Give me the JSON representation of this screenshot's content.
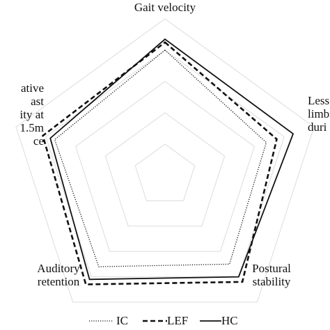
{
  "chart_data": {
    "type": "radar",
    "title": "",
    "axes": [
      {
        "label_lines": [
          "Gait velocity"
        ]
      },
      {
        "label_lines": [
          "Less",
          "limb",
          "duri"
        ]
      },
      {
        "label_lines": [
          "Postural",
          "stability"
        ]
      },
      {
        "label_lines": [
          "Auditory",
          "retention"
        ]
      },
      {
        "label_lines": [
          "ative",
          "ast",
          "ity at",
          "1.5m",
          "ce"
        ]
      }
    ],
    "rlim": [
      0,
      5
    ],
    "grid_levels": [
      1,
      2,
      3,
      4,
      5
    ],
    "grid": true,
    "legend_position": "bottom",
    "series": [
      {
        "name": "IC",
        "line_style": "dotted",
        "values": [
          4.0,
          3.4,
          3.5,
          3.6,
          3.7
        ]
      },
      {
        "name": "LEF",
        "line_style": "dashed",
        "values": [
          4.25,
          3.75,
          4.2,
          4.3,
          4.1
        ]
      },
      {
        "name": "HC",
        "line_style": "solid",
        "values": [
          4.35,
          4.3,
          4.0,
          4.1,
          3.85
        ]
      }
    ]
  }
}
